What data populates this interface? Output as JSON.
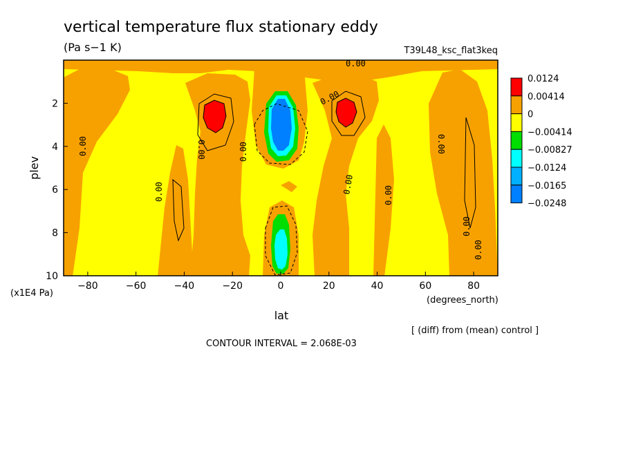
{
  "chart_data": {
    "type": "contour",
    "title": "vertical temperature flux stationary eddy",
    "units": "(Pa s−1 K)",
    "run_label": "T39L48_ksc_flat3keq",
    "xlabel": "lat",
    "x_units": "(degrees_north)",
    "ylabel": "plev",
    "y_units": "(x1E4 Pa)",
    "xlim": [
      -90,
      90
    ],
    "ylim": [
      10,
      0
    ],
    "x_ticks": [
      -80,
      -60,
      -40,
      -20,
      0,
      20,
      40,
      60,
      80
    ],
    "y_ticks": [
      2,
      4,
      6,
      8,
      10
    ],
    "contour_interval": "CONTOUR INTERVAL = 2.068E-03",
    "note": "[ (diff) from (mean) control ]",
    "contour_label": "0.00",
    "colorbar": {
      "levels": [
        "0.0124",
        "0.00414",
        "0",
        "−0.00414",
        "−0.00827",
        "−0.0124",
        "−0.0165",
        "−0.0248"
      ],
      "colors": [
        "#ff0000",
        "#f7a100",
        "#ffff00",
        "#00dd00",
        "#00ffff",
        "#00b0ff",
        "#0080ff"
      ]
    },
    "colors": {
      "positive_band": "#f7a100",
      "zero_band": "#ffff00",
      "strong_positive": "#ff0000",
      "negative_light": "#00dd00",
      "negative_cyan": "#00ffff",
      "negative_strong": "#0080ff"
    },
    "features": [
      {
        "name": "positive-max-sh",
        "lat": -26,
        "plev": 2.5,
        "value": "0.0124"
      },
      {
        "name": "positive-max-nh",
        "lat": 26,
        "plev": 2.5,
        "value": "0.0124"
      },
      {
        "name": "negative-min-upper-equator",
        "lat": 0,
        "plev": 3.0,
        "value": "−0.0248"
      },
      {
        "name": "negative-min-lower-equator",
        "lat": 0,
        "plev": 8.7,
        "value": "−0.0124"
      }
    ]
  }
}
